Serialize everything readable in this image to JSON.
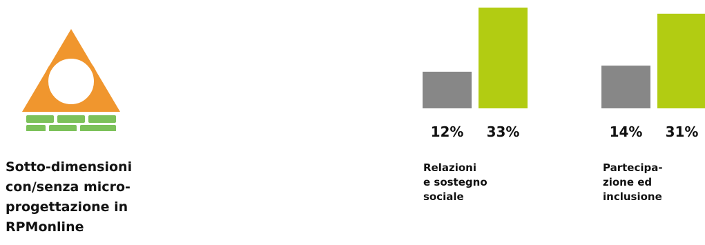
{
  "caption": {
    "lines": [
      "Sotto-dimensioni",
      "con/senza micro-",
      "progettazione in",
      "RPMonline"
    ]
  },
  "logo": {
    "icon": "triangle-over-bricks-icon",
    "colors": {
      "triangle": "#f0962e",
      "bricks": "#7cc15a"
    }
  },
  "chart_data": {
    "type": "bar",
    "categories": [
      "Relazioni e sostegno sociale",
      "Partecipazione ed inclusione"
    ],
    "category_label_lines": [
      [
        "Relazioni",
        "e sostegno",
        "sociale"
      ],
      [
        "Partecipa-",
        "zione ed",
        "inclusione"
      ]
    ],
    "series": [
      {
        "values": [
          12,
          14
        ],
        "labels": [
          "12%",
          "14%"
        ],
        "color": "#878787"
      },
      {
        "values": [
          33,
          31
        ],
        "labels": [
          "33%",
          "31%"
        ],
        "color": "#b2cc12"
      }
    ],
    "ylim": [
      0,
      33
    ],
    "grid": false
  }
}
